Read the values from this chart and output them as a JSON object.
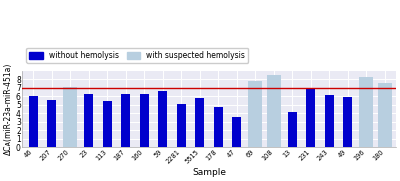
{
  "samples": [
    "46",
    "207",
    "270",
    "23",
    "113",
    "187",
    "160",
    "59",
    "2281",
    "5515",
    "178",
    "47",
    "69",
    "108",
    "13",
    "231",
    "243",
    "49",
    "196",
    "180"
  ],
  "blue_values": [
    6.0,
    5.55,
    null,
    6.3,
    5.5,
    6.3,
    6.3,
    6.6,
    5.1,
    5.85,
    4.7,
    3.6,
    null,
    null,
    4.2,
    6.85,
    6.2,
    5.95,
    null,
    null
  ],
  "gray_values": [
    null,
    null,
    7.15,
    null,
    null,
    null,
    null,
    null,
    null,
    null,
    null,
    null,
    7.75,
    8.5,
    null,
    null,
    null,
    null,
    8.25,
    7.6
  ],
  "ylabel": "ΔCᴀ(miR-23a-miR-451a)",
  "xlabel": "Sample",
  "redline_y": 7.0,
  "ylim": [
    0,
    9
  ],
  "yticks": [
    0,
    1,
    2,
    3,
    4,
    5,
    6,
    7,
    8
  ],
  "blue_color": "#0000cd",
  "gray_color": "#b8cfe0",
  "red_color": "#cc0000",
  "legend_blue": "without hemolysis",
  "legend_gray": "with suspected hemolysis",
  "bg_color": "#eaeaf4",
  "grid_color": "#ffffff"
}
